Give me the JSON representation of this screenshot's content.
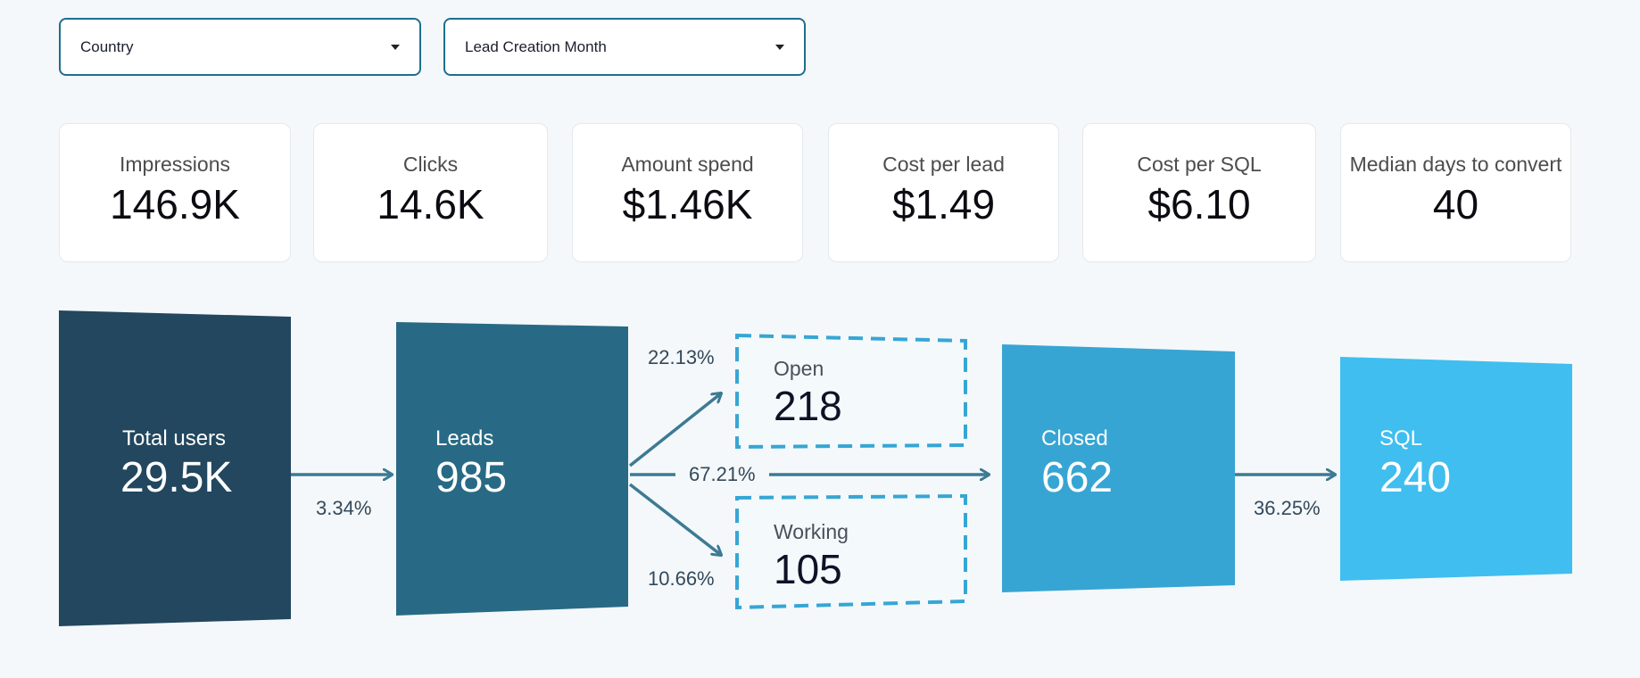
{
  "filters": {
    "country": {
      "label": "Country"
    },
    "month": {
      "label": "Lead Creation Month"
    }
  },
  "kpis": [
    {
      "label": "Impressions",
      "value": "146.9K"
    },
    {
      "label": "Clicks",
      "value": "14.6K"
    },
    {
      "label": "Amount spend",
      "value": "$1.46K"
    },
    {
      "label": "Cost per lead",
      "value": "$1.49"
    },
    {
      "label": "Cost per SQL",
      "value": "$6.10"
    },
    {
      "label": "Median days to convert",
      "value": "40"
    }
  ],
  "funnel": {
    "total_users": {
      "label": "Total users",
      "value": "29.5K",
      "color": "#22475f"
    },
    "leads": {
      "label": "Leads",
      "value": "985",
      "color": "#286a85"
    },
    "open": {
      "label": "Open",
      "value": "218"
    },
    "working": {
      "label": "Working",
      "value": "105"
    },
    "closed": {
      "label": "Closed",
      "value": "662",
      "color": "#37a5d3"
    },
    "sql": {
      "label": "SQL",
      "value": "240",
      "color": "#3fbeef"
    },
    "rates": {
      "users_to_leads": "3.34%",
      "leads_to_open": "22.13%",
      "leads_to_closed": "67.21%",
      "leads_to_working": "10.66%",
      "closed_to_sql": "36.25%"
    },
    "colors": {
      "arrow": "#3d7a94",
      "status_border": "#36a6d4",
      "status_fill": "#f4f9fc"
    }
  }
}
